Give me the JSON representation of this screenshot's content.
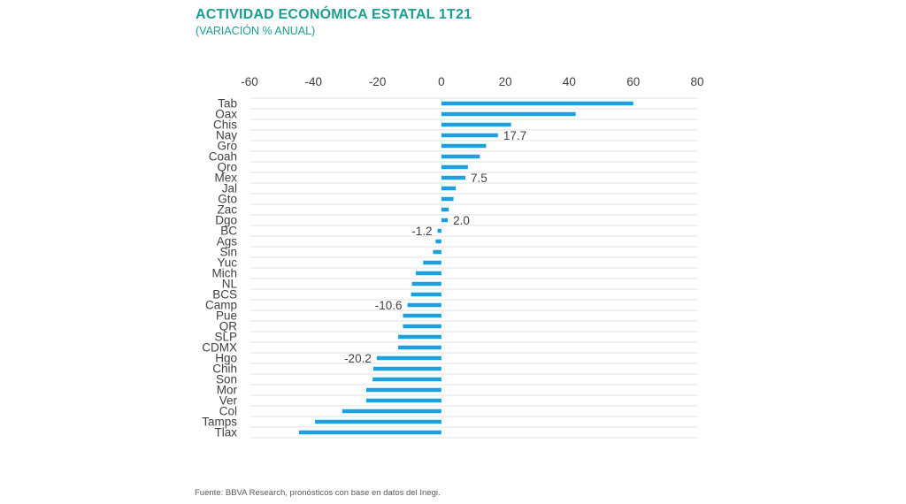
{
  "title": "ACTIVIDAD ECONÓMICA ESTATAL 1T21",
  "subtitle": "(VARIACIÓN % ANUAL)",
  "source": "Fuente: BBVA Research, pronósticos con base en datos del Inegi.",
  "chart_data": {
    "type": "bar",
    "orientation": "horizontal",
    "categories": [
      "Tab",
      "Oax",
      "Chis",
      "Nay",
      "Gro",
      "Coah",
      "Qro",
      "Mex",
      "Jal",
      "Gto",
      "Zac",
      "Dgo",
      "BC",
      "Ags",
      "Sin",
      "Yuc",
      "Mich",
      "NL",
      "BCS",
      "Camp",
      "Pue",
      "QR",
      "SLP",
      "CDMX",
      "Hgo",
      "Chih",
      "Son",
      "Mor",
      "Ver",
      "Col",
      "Tamps",
      "Tlax"
    ],
    "values": [
      60.0,
      42.0,
      21.8,
      17.7,
      14.0,
      12.0,
      8.3,
      7.5,
      4.5,
      3.8,
      2.3,
      2.0,
      -1.2,
      -1.8,
      -2.6,
      -5.7,
      -8.0,
      -9.2,
      -9.5,
      -10.6,
      -12.0,
      -12.0,
      -13.5,
      -13.5,
      -20.2,
      -21.3,
      -21.5,
      -23.5,
      -23.5,
      -31.0,
      -39.5,
      -44.5
    ],
    "data_labels": {
      "Nay": "17.7",
      "Mex": "7.5",
      "Dgo": "2.0",
      "BC": "-1.2",
      "Camp": "-10.6",
      "Hgo": "-20.2"
    },
    "xlim": [
      -60,
      80
    ],
    "xticks": [
      -60,
      -40,
      -20,
      0,
      20,
      40,
      60,
      80
    ],
    "xaxis_position": "top",
    "grid": true,
    "bar_color": "#1ba1e2",
    "title_color": "#1a9e8f"
  }
}
